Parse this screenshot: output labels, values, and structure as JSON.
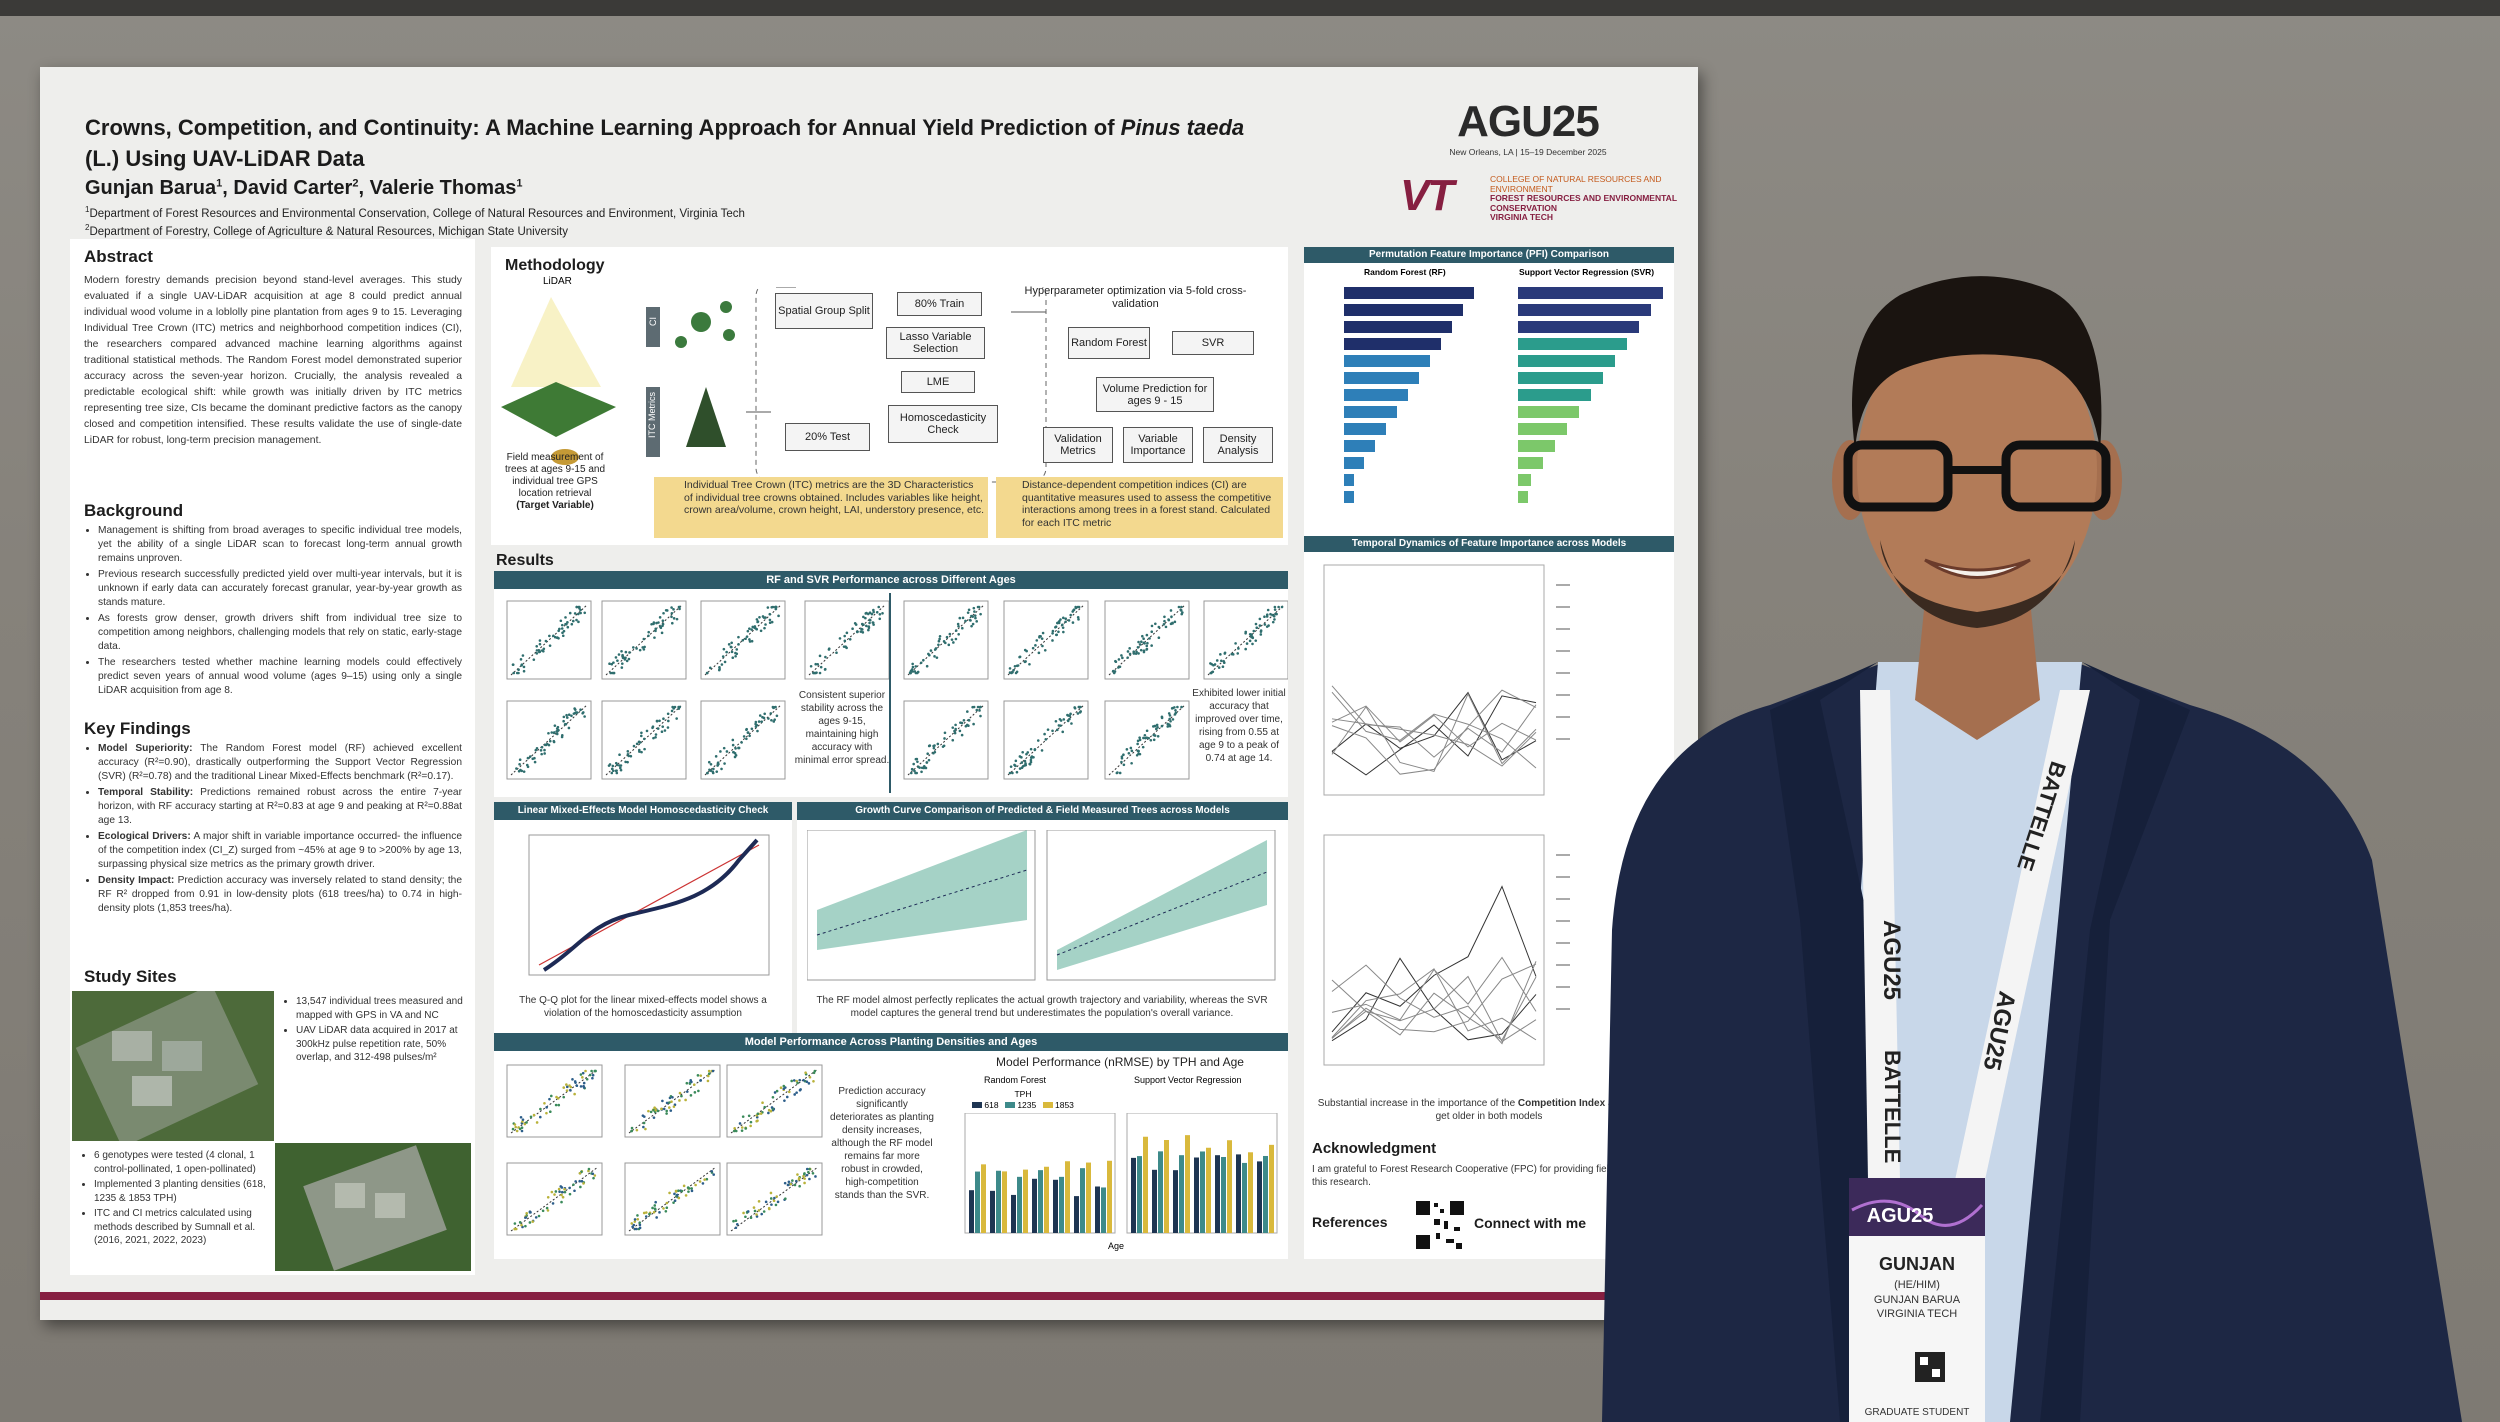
{
  "poster": {
    "title": {
      "lead": "Crowns, Competition, and Continuity:",
      "text": " A Machine Learning Approach for Annual Yield Prediction of ",
      "species": "Pinus taeda",
      "suffix": " (L.) Using UAV-LiDAR Data"
    },
    "authors": [
      {
        "name": "Gunjan Barua",
        "sup": "1"
      },
      {
        "name": "David Carter",
        "sup": "2"
      },
      {
        "name": "Valerie Thomas",
        "sup": "1"
      }
    ],
    "authors_separator": ",",
    "affiliations": [
      {
        "sup": "1",
        "text": "Department of Forest Resources and Environmental Conservation, College of Natural Resources and Environment, Virginia Tech"
      },
      {
        "sup": "2",
        "text": "Department of Forestry, College of Agriculture & Natural Resources, Michigan State University"
      }
    ],
    "logos": {
      "agu": "AGU25",
      "agu_place": "New Orleans, LA | 15–19 December 2025",
      "vt": "VT",
      "vt_college": "COLLEGE OF NATURAL RESOURCES AND ENVIRONMENT",
      "vt_department": "FOREST RESOURCES AND ENVIRONMENTAL CONSERVATION",
      "vt_name": "VIRGINIA TECH"
    },
    "abstract": {
      "heading": "Abstract",
      "text": "Modern forestry demands precision beyond stand-level averages. This study evaluated if a single UAV-LiDAR acquisition at age 8 could predict annual individual wood volume in a loblolly pine plantation from ages 9 to 15. Leveraging Individual Tree Crown (ITC) metrics and neighborhood competition indices (CI), the researchers compared advanced machine learning algorithms against traditional statistical methods. The Random Forest model demonstrated superior accuracy across the seven-year horizon. Crucially, the analysis revealed a predictable ecological shift: while growth was initially driven by ITC metrics representing tree size, CIs became the dominant predictive factors as the canopy closed and competition intensified. These results validate the use of single-date LiDAR for robust, long-term precision management."
    },
    "background": {
      "heading": "Background",
      "bullets": [
        "Management is shifting from broad averages to specific individual tree models, yet the ability of a single LiDAR scan to forecast long-term annual growth remains unproven.",
        "Previous research successfully predicted yield over multi-year intervals, but it is unknown if early data can accurately forecast granular, year-by-year growth as stands mature.",
        "As forests grow denser, growth drivers shift from individual tree size to competition among neighbors, challenging models that rely on static, early-stage data.",
        "The researchers tested whether machine learning models could effectively predict seven years of annual wood volume (ages 9–15) using only a single LiDAR acquisition from age 8."
      ]
    },
    "key_findings": {
      "heading": "Key Findings",
      "items": [
        {
          "label": "Model Superiority:",
          "text": " The Random Forest model (RF) achieved excellent accuracy (R²=0.90), drastically outperforming the Support Vector Regression (SVR) (R²=0.78) and the traditional Linear Mixed-Effects benchmark (R²=0.17)."
        },
        {
          "label": "Temporal Stability:",
          "text": " Predictions remained robust across the entire 7-year horizon, with RF accuracy starting at R²=0.83 at age 9 and peaking at R²=0.88at age 13."
        },
        {
          "label": "Ecological Drivers:",
          "text": " A major shift in variable importance occurred- the influence of the competition index (CI_Z) surged from ~45% at age 9 to >200% by age 13, surpassing physical size metrics as the primary growth driver."
        },
        {
          "label": "Density Impact:",
          "text": " Prediction accuracy was inversely related to stand density; the RF R² dropped from 0.91 in low-density plots (618 trees/ha) to 0.74 in high-density plots (1,853 trees/ha)."
        }
      ]
    },
    "study_sites": {
      "heading": "Study Sites",
      "bullets_top": [
        "13,547 individual trees measured and mapped with GPS in VA and NC",
        "UAV LiDAR data acquired in 2017 at 300kHz pulse repetition rate, 50% overlap, and 312-498 pulses/m²"
      ],
      "bullets_bottom": [
        "6 genotypes were tested (4 clonal, 1 control-pollinated, 1 open-pollinated)",
        "Implemented 3 planting densities (618, 1235 & 1853 TPH)",
        "ITC and CI metrics calculated using methods described by Sumnall et al. (2016, 2021, 2022, 2023)"
      ]
    },
    "methodology": {
      "heading": "Methodology",
      "lidar": "LiDAR",
      "field": "Field measurement of trees at ages 9-15 and individual tree GPS location retrieval",
      "target": "(Target Variable)",
      "itc_tag": "ITC Metrics",
      "ci_tag": "CI",
      "split": "Spatial Group Split",
      "train": "80% Train",
      "test": "20% Test",
      "lasso": "Lasso Variable Selection",
      "lme": "LME",
      "homo": "Homoscedasticity Check",
      "hyper": "Hyperparameter optimization via 5-fold cross-validation",
      "rf": "Random Forest",
      "svr": "SVR",
      "volume": "Volume Prediction for ages 9 - 15",
      "validation": "Validation Metrics",
      "importance": "Variable Importance",
      "density": "Density Analysis",
      "itc_info": "Individual Tree Crown (ITC) metrics are the 3D Characteristics of individual tree crowns obtained. Includes variables like height, crown area/volume, crown height, LAI, understory presence, etc.",
      "ci_info": "Distance-dependent competition indices (CI) are quantitative measures used to assess the competitive interactions among trees in a forest stand. Calculated for each ITC metric"
    },
    "results": {
      "heading": "Results",
      "performance": {
        "title": "RF and SVR Performance across Different Ages",
        "rf_caption": "Consistent superior stability across the ages 9-15, maintaining high accuracy with minimal error spread.",
        "svr_caption": "Exhibited lower initial accuracy that improved over time, rising from 0.55 at age 9 to a peak of 0.74 at age 14."
      },
      "lme": {
        "title": "Linear Mixed-Effects Model Homoscedasticity Check",
        "caption": "The Q-Q plot for the linear mixed-effects model shows a violation of the homoscedasticity assumption"
      },
      "growth": {
        "title": "Growth Curve Comparison of Predicted & Field Measured Trees across Models",
        "caption": "The RF model almost perfectly replicates the actual growth trajectory and variability, whereas the SVR model captures the general trend but underestimates the population's overall variance."
      },
      "density": {
        "title": "Model Performance Across Planting Densities and Ages",
        "caption": "Prediction accuracy significantly deteriorates as planting density increases, although the RF model remains far more robust in crowded, high-competition stands than the SVR.",
        "chart_title": "Model Performance (nRMSE) by TPH and Age",
        "left": "Random Forest",
        "right": "Support Vector Regression",
        "legend_title": "TPH",
        "legend": [
          "618",
          "1235",
          "1853"
        ],
        "x_label": "Age"
      }
    },
    "right": {
      "pfi_title": "Permutation Feature Importance (PFI) Comparison",
      "pfi_rf": "Random Forest (RF)",
      "pfi_svr": "Support Vector Regression (SVR)",
      "temporal_title": "Temporal Dynamics of Feature Importance across Models",
      "temporal_caption_a": "Substantial increase in the importance of the ",
      "temporal_caption_b": "Competition Index",
      "temporal_caption_c": " as the trees get older in both models",
      "ack_heading": "Acknowledgment",
      "ack_text": "I am grateful to Forest Research Cooperative (FPC) for providing field data for this research.",
      "ref_heading": "References",
      "connect": "Connect with me"
    }
  },
  "badge": {
    "lanyard_a": "AGU25",
    "lanyard_b": "BATTELLE",
    "event": "AGU25",
    "first_name": "GUNJAN",
    "pronouns": "(HE/HIM)",
    "full_name": "GUNJAN BARUA",
    "institution": "VIRGINIA TECH",
    "role": "GRADUATE STUDENT"
  }
}
